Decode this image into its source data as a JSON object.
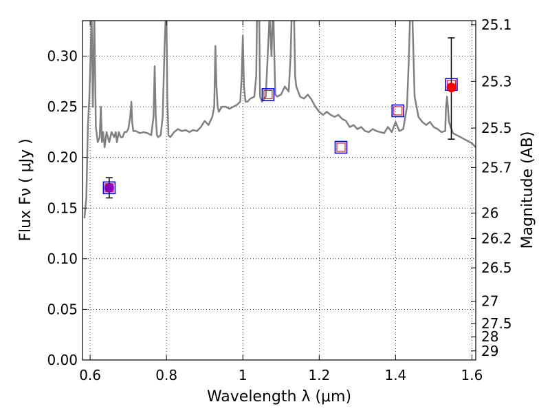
{
  "chart_data": {
    "type": "line",
    "xlabel": "Wavelength  λ (μm)",
    "ylabel": "Flux  Fν  ( μJy )",
    "y2label": "Magnitude (AB)",
    "xlim": [
      0.58,
      1.61
    ],
    "ylim": [
      0.0,
      0.335
    ],
    "grid": true,
    "x_ticks": [
      {
        "value": 0.6,
        "label": "0.6"
      },
      {
        "value": 0.8,
        "label": "0.8"
      },
      {
        "value": 1.0,
        "label": "1"
      },
      {
        "value": 1.2,
        "label": "1.2"
      },
      {
        "value": 1.4,
        "label": "1.4"
      },
      {
        "value": 1.6,
        "label": "1.6"
      }
    ],
    "y_ticks": [
      {
        "value": 0.0,
        "label": "0.00"
      },
      {
        "value": 0.05,
        "label": "0.05"
      },
      {
        "value": 0.1,
        "label": "0.10"
      },
      {
        "value": 0.15,
        "label": "0.15"
      },
      {
        "value": 0.2,
        "label": "0.20"
      },
      {
        "value": 0.25,
        "label": "0.25"
      },
      {
        "value": 0.3,
        "label": "0.30"
      }
    ],
    "y2_ticks": [
      {
        "flux": 0.331,
        "label": "25.1"
      },
      {
        "flux": 0.275,
        "label": "25.3"
      },
      {
        "flux": 0.229,
        "label": "25.5"
      },
      {
        "flux": 0.19,
        "label": "25.7"
      },
      {
        "flux": 0.145,
        "label": "26"
      },
      {
        "flux": 0.12,
        "label": "26.2"
      },
      {
        "flux": 0.091,
        "label": "26.5"
      },
      {
        "flux": 0.058,
        "label": "27"
      },
      {
        "flux": 0.036,
        "label": "27.5"
      },
      {
        "flux": 0.023,
        "label": "28"
      },
      {
        "flux": 0.009,
        "label": "29"
      }
    ],
    "spectrum": {
      "color": "#808080",
      "x": [
        0.585,
        0.59,
        0.594,
        0.598,
        0.601,
        0.604,
        0.607,
        0.611,
        0.615,
        0.62,
        0.625,
        0.628,
        0.631,
        0.634,
        0.638,
        0.643,
        0.65,
        0.656,
        0.663,
        0.667,
        0.67,
        0.675,
        0.68,
        0.685,
        0.69,
        0.695,
        0.7,
        0.705,
        0.708,
        0.71,
        0.713,
        0.72,
        0.73,
        0.74,
        0.75,
        0.76,
        0.766,
        0.769,
        0.772,
        0.775,
        0.778,
        0.785,
        0.79,
        0.795,
        0.798,
        0.8,
        0.802,
        0.805,
        0.81,
        0.82,
        0.83,
        0.84,
        0.85,
        0.86,
        0.87,
        0.88,
        0.89,
        0.9,
        0.91,
        0.92,
        0.925,
        0.928,
        0.931,
        0.934,
        0.937,
        0.945,
        0.955,
        0.965,
        0.975,
        0.985,
        0.993,
        0.997,
        1.0,
        1.003,
        1.007,
        1.012,
        1.02,
        1.03,
        1.035,
        1.037,
        1.04,
        1.043,
        1.045,
        1.05,
        1.06,
        1.07,
        1.075,
        1.078,
        1.08,
        1.085,
        1.09,
        1.1,
        1.11,
        1.12,
        1.125,
        1.128,
        1.131,
        1.134,
        1.137,
        1.14,
        1.15,
        1.16,
        1.17,
        1.18,
        1.19,
        1.2,
        1.21,
        1.22,
        1.23,
        1.24,
        1.25,
        1.26,
        1.27,
        1.28,
        1.29,
        1.3,
        1.31,
        1.32,
        1.33,
        1.34,
        1.35,
        1.36,
        1.37,
        1.38,
        1.39,
        1.4,
        1.41,
        1.42,
        1.43,
        1.435,
        1.438,
        1.44,
        1.444,
        1.45,
        1.46,
        1.47,
        1.48,
        1.49,
        1.5,
        1.51,
        1.52,
        1.53,
        1.532,
        1.535,
        1.54,
        1.55,
        1.56,
        1.57,
        1.58,
        1.59,
        1.6,
        1.61
      ],
      "y": [
        0.14,
        0.16,
        0.23,
        0.26,
        0.3,
        0.34,
        0.25,
        0.34,
        0.23,
        0.215,
        0.22,
        0.25,
        0.215,
        0.225,
        0.21,
        0.225,
        0.215,
        0.225,
        0.22,
        0.225,
        0.215,
        0.225,
        0.22,
        0.22,
        0.225,
        0.225,
        0.228,
        0.24,
        0.255,
        0.235,
        0.226,
        0.226,
        0.224,
        0.225,
        0.224,
        0.222,
        0.24,
        0.29,
        0.24,
        0.222,
        0.22,
        0.222,
        0.24,
        0.31,
        0.34,
        0.34,
        0.26,
        0.222,
        0.22,
        0.225,
        0.228,
        0.226,
        0.227,
        0.225,
        0.227,
        0.226,
        0.23,
        0.236,
        0.232,
        0.24,
        0.25,
        0.31,
        0.27,
        0.25,
        0.245,
        0.25,
        0.25,
        0.248,
        0.25,
        0.252,
        0.255,
        0.28,
        0.32,
        0.27,
        0.255,
        0.255,
        0.258,
        0.26,
        0.28,
        0.34,
        0.34,
        0.34,
        0.26,
        0.255,
        0.26,
        0.34,
        0.3,
        0.34,
        0.34,
        0.262,
        0.26,
        0.262,
        0.27,
        0.265,
        0.3,
        0.34,
        0.34,
        0.34,
        0.28,
        0.27,
        0.26,
        0.258,
        0.262,
        0.257,
        0.25,
        0.245,
        0.242,
        0.245,
        0.242,
        0.24,
        0.242,
        0.238,
        0.236,
        0.23,
        0.232,
        0.228,
        0.23,
        0.226,
        0.225,
        0.228,
        0.226,
        0.225,
        0.224,
        0.23,
        0.225,
        0.235,
        0.226,
        0.228,
        0.25,
        0.3,
        0.34,
        0.34,
        0.34,
        0.26,
        0.24,
        0.235,
        0.232,
        0.235,
        0.23,
        0.228,
        0.225,
        0.226,
        0.25,
        0.26,
        0.235,
        0.224,
        0.222,
        0.22,
        0.218,
        0.216,
        0.214,
        0.21
      ]
    },
    "photometry": [
      {
        "x": 0.65,
        "y": 0.17
      },
      {
        "x": 1.066,
        "y": 0.262
      },
      {
        "x": 1.257,
        "y": 0.21
      },
      {
        "x": 1.406,
        "y": 0.246
      },
      {
        "x": 1.546,
        "y": 0.272
      }
    ],
    "measurements": [
      {
        "x": 0.65,
        "y": 0.17,
        "ylo": 0.16,
        "yhi": 0.18,
        "color": "#8a00b8"
      },
      {
        "x": 1.546,
        "y": 0.269,
        "ylo": 0.218,
        "yhi": 0.318,
        "color": "#ff0000"
      }
    ]
  }
}
